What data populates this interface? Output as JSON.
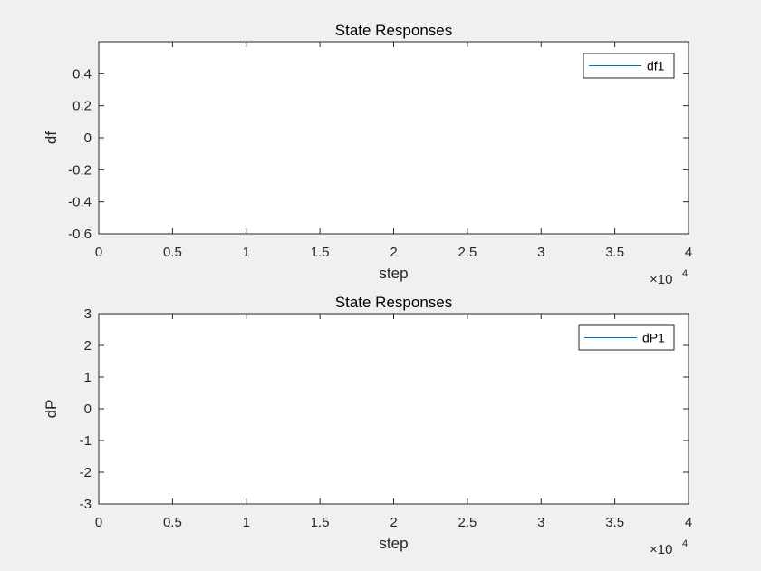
{
  "chart_data": [
    {
      "type": "line",
      "title": "State Responses",
      "xlabel": "step",
      "ylabel": "df",
      "xlim": [
        0,
        40000
      ],
      "ylim": [
        -0.6,
        0.6
      ],
      "x_ticks": [
        "0",
        "0.5",
        "1",
        "1.5",
        "2",
        "2.5",
        "3",
        "3.5",
        "4"
      ],
      "y_ticks": [
        "-0.6",
        "-0.4",
        "-0.2",
        "0",
        "0.2",
        "0.4"
      ],
      "x_multiplier": {
        "base": "×10",
        "exponent": "4"
      },
      "legend_position": "top-right",
      "grid": false,
      "series": [
        {
          "name": "df1",
          "color": "#0072bd",
          "x": [],
          "y": []
        }
      ]
    },
    {
      "type": "line",
      "title": "State Responses",
      "xlabel": "step",
      "ylabel": "dP",
      "xlim": [
        0,
        40000
      ],
      "ylim": [
        -3,
        3
      ],
      "x_ticks": [
        "0",
        "0.5",
        "1",
        "1.5",
        "2",
        "2.5",
        "3",
        "3.5",
        "4"
      ],
      "y_ticks": [
        "-3",
        "-2",
        "-1",
        "0",
        "1",
        "2",
        "3"
      ],
      "x_multiplier": {
        "base": "×10",
        "exponent": "4"
      },
      "legend_position": "top-right",
      "grid": false,
      "series": [
        {
          "name": "dP1",
          "color": "#0072bd",
          "x": [],
          "y": []
        }
      ]
    }
  ]
}
